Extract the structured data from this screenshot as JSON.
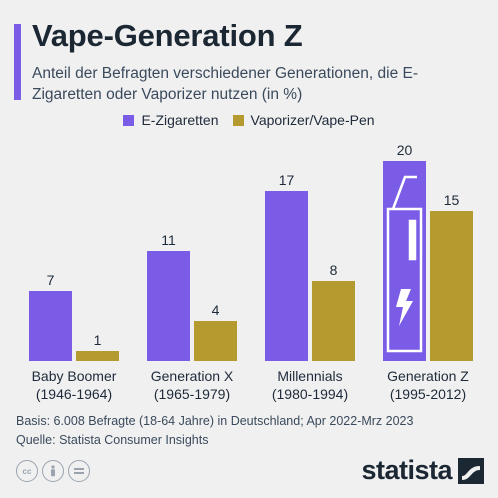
{
  "title": "Vape-Generation Z",
  "subtitle": "Anteil der Befragten verschiedener Generationen, die E-Zigaretten oder Vaporizer nutzen (in %)",
  "footer": {
    "basis": "Basis: 6.008 Befragte (18-64 Jahre) in Deutschland; Apr 2022-Mrz 2023",
    "source": "Quelle: Statista Consumer Insights"
  },
  "logo": {
    "text": "statista"
  },
  "colors": {
    "ezig": "#7b5ce6",
    "vape": "#b59a30",
    "accent": "#7b5ce6"
  },
  "chart_data": {
    "type": "bar",
    "categories": [
      [
        "Baby Boomer",
        "(1946-1964)"
      ],
      [
        "Generation X",
        "(1965-1979)"
      ],
      [
        "Millennials",
        "(1980-1994)"
      ],
      [
        "Generation Z",
        "(1995-2012)"
      ]
    ],
    "series": [
      {
        "name": "E-Zigaretten",
        "values": [
          7,
          11,
          17,
          20
        ]
      },
      {
        "name": "Vaporizer/Vape-Pen",
        "values": [
          1,
          4,
          8,
          15
        ]
      }
    ],
    "ylim": [
      0,
      20
    ],
    "grid": false,
    "legend": "top-center"
  }
}
